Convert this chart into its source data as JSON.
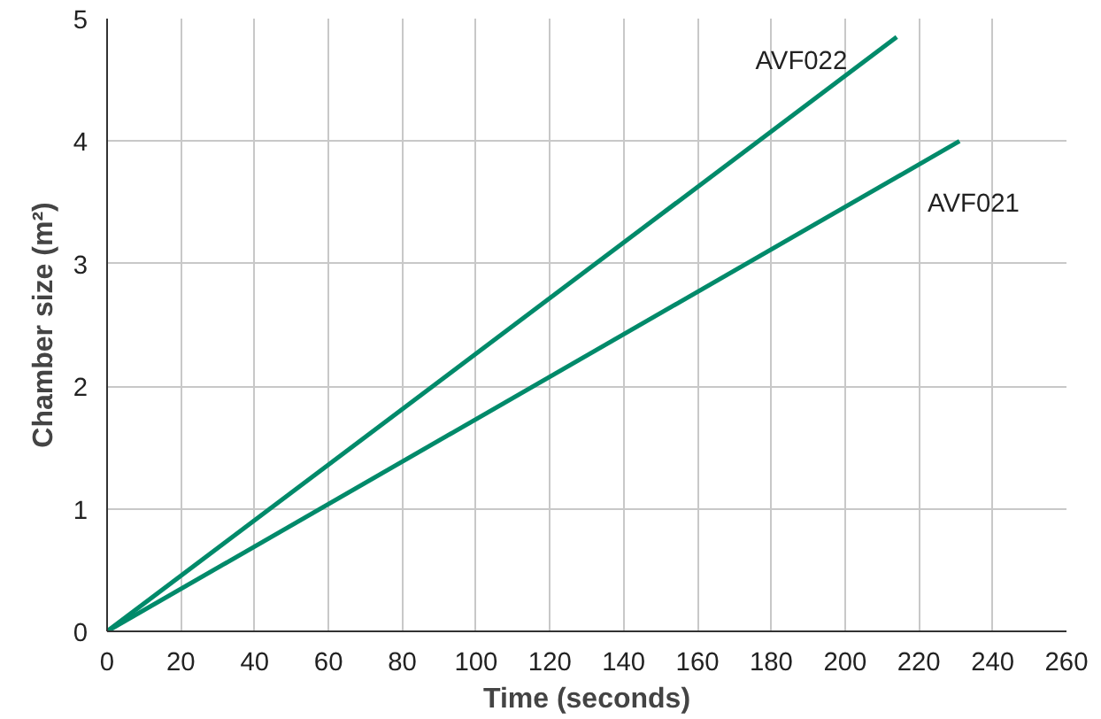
{
  "chart_data": {
    "type": "line",
    "xlabel": "Time (seconds)",
    "ylabel": "Chamber size (m²)",
    "series": [
      {
        "name": "AVF022",
        "color": "#008a6a",
        "x": [
          0,
          214
        ],
        "values": [
          0,
          4.85
        ]
      },
      {
        "name": "AVF021",
        "color": "#008a6a",
        "x": [
          0,
          231
        ],
        "values": [
          0,
          4.0
        ]
      }
    ],
    "xlim": [
      0,
      260
    ],
    "ylim": [
      0,
      5
    ],
    "xticks": [
      0,
      20,
      40,
      60,
      80,
      100,
      120,
      140,
      160,
      180,
      200,
      220,
      240,
      260
    ],
    "yticks": [
      0,
      1,
      2,
      3,
      4,
      5
    ],
    "grid": true,
    "marker": "none",
    "line_style": "solid"
  }
}
